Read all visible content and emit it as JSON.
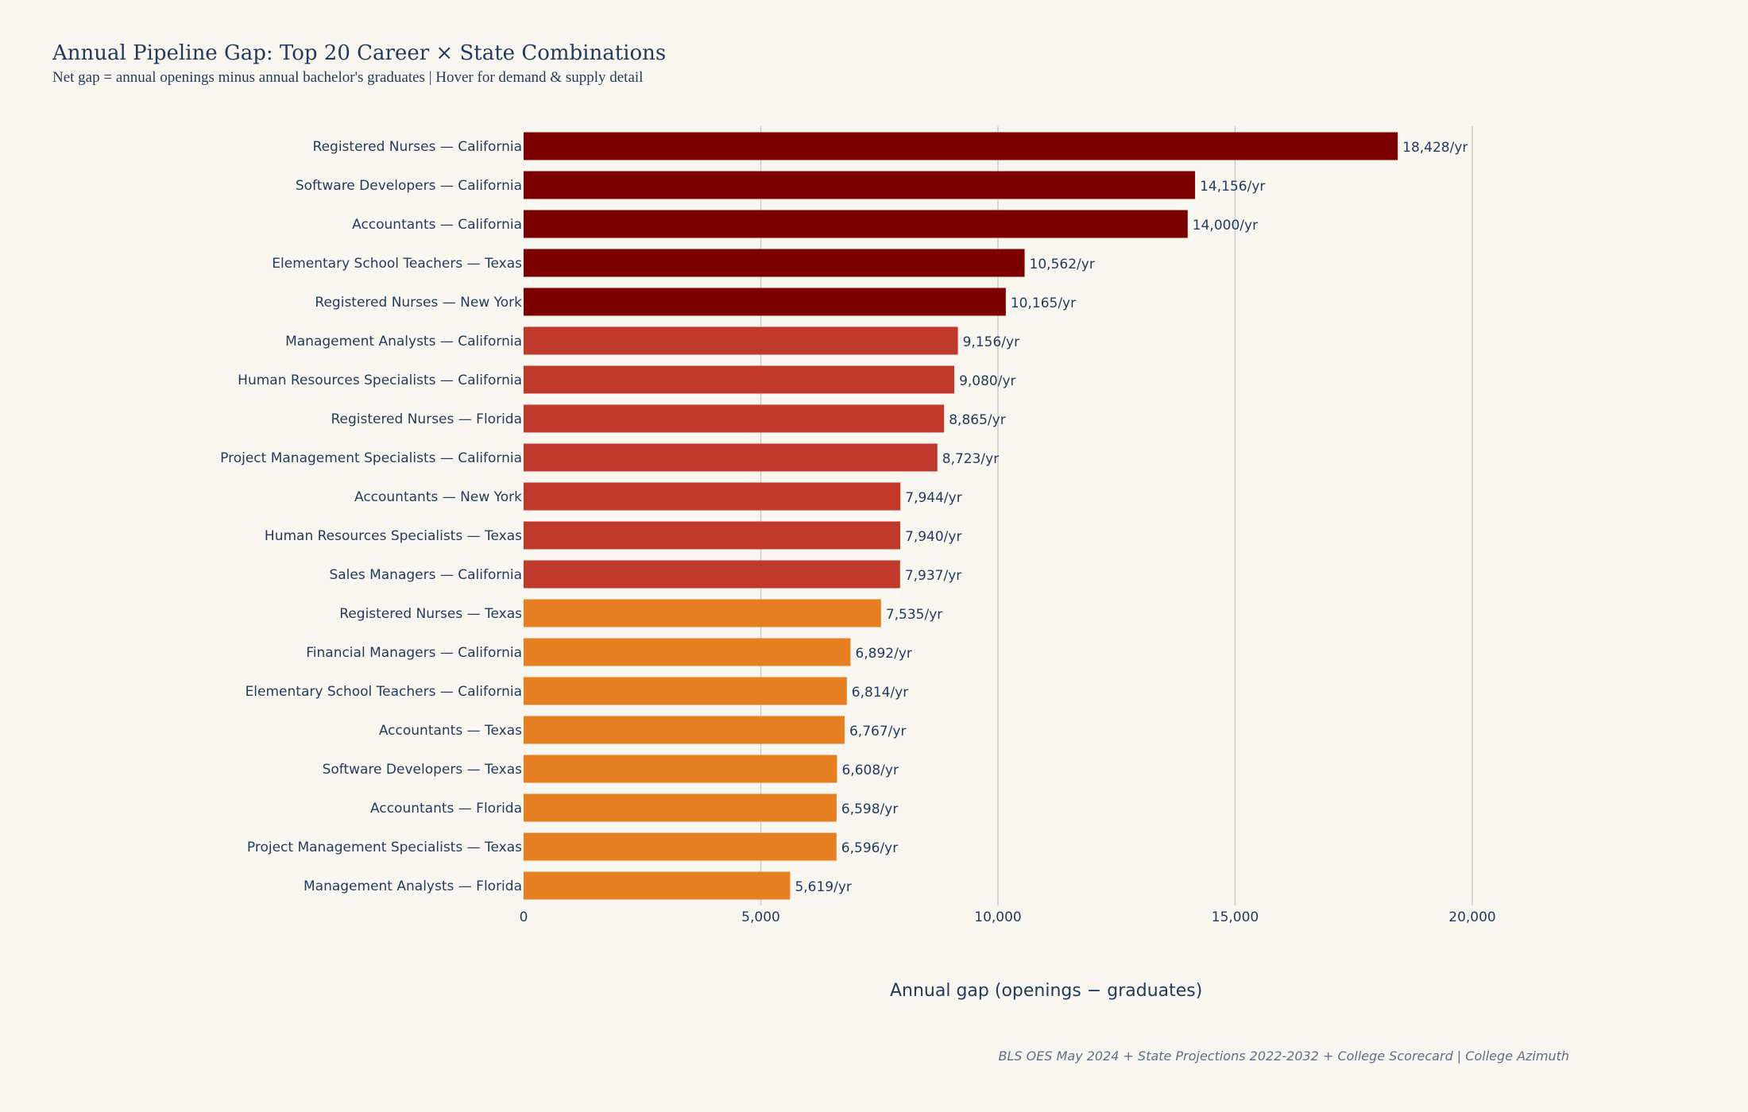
{
  "chart_data": {
    "type": "bar",
    "orientation": "horizontal",
    "title": "Annual Pipeline Gap: Top 20 Career × State Combinations",
    "subtitle": "Net gap = annual openings minus annual bachelor's graduates | Hover for demand & supply detail",
    "xlabel": "Annual gap (openings − graduates)",
    "ylabel": "",
    "xlim": [
      0,
      20000
    ],
    "xticks": [
      0,
      5000,
      10000,
      15000,
      20000
    ],
    "xtick_labels": [
      "0",
      "5,000",
      "10,000",
      "15,000",
      "20,000"
    ],
    "grid": "vertical",
    "value_suffix": "/yr",
    "categories": [
      "Registered Nurses — California",
      "Software Developers — California",
      "Accountants — California",
      "Elementary School Teachers — Texas",
      "Registered Nurses — New York",
      "Management Analysts — California",
      "Human Resources Specialists — California",
      "Registered Nurses — Florida",
      "Project Management Specialists — California",
      "Accountants — New York",
      "Human Resources Specialists — Texas",
      "Sales Managers — California",
      "Registered Nurses — Texas",
      "Financial Managers — California",
      "Elementary School Teachers — California",
      "Accountants — Texas",
      "Software Developers — Texas",
      "Accountants — Florida",
      "Project Management Specialists — Texas",
      "Management Analysts — Florida"
    ],
    "values": [
      18428,
      14156,
      14000,
      10562,
      10165,
      9156,
      9080,
      8865,
      8723,
      7944,
      7940,
      7937,
      7535,
      6892,
      6814,
      6767,
      6608,
      6598,
      6596,
      5619
    ],
    "data_labels": [
      "18,428/yr",
      "14,156/yr",
      "14,000/yr",
      "10,562/yr",
      "10,165/yr",
      "9,156/yr",
      "9,080/yr",
      "8,865/yr",
      "8,723/yr",
      "7,944/yr",
      "7,940/yr",
      "7,937/yr",
      "7,535/yr",
      "6,892/yr",
      "6,814/yr",
      "6,767/yr",
      "6,608/yr",
      "6,598/yr",
      "6,596/yr",
      "5,619/yr"
    ],
    "colors": {
      "high": "#7b0000",
      "mid": "#c0392b",
      "low": "#e67e22"
    },
    "color_groups": [
      "high",
      "high",
      "high",
      "high",
      "high",
      "mid",
      "mid",
      "mid",
      "mid",
      "mid",
      "mid",
      "mid",
      "low",
      "low",
      "low",
      "low",
      "low",
      "low",
      "low",
      "low"
    ]
  },
  "footer": "BLS OES May 2024 + State Projections 2022-2032 + College Scorecard | College Azimuth"
}
